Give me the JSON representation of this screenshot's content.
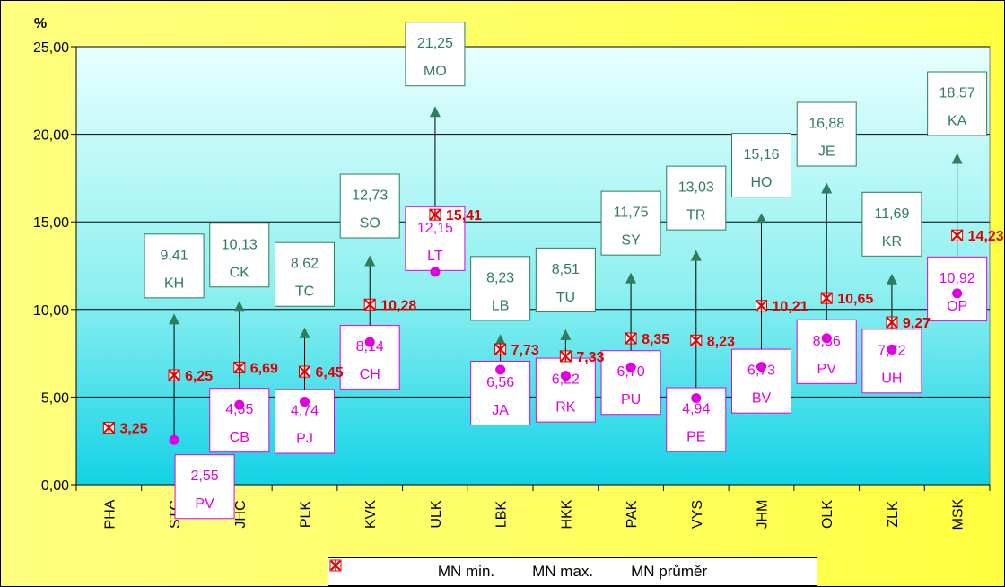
{
  "chart_data": {
    "type": "scatter",
    "y_unit_label": "%",
    "ylim": [
      0,
      25
    ],
    "y_ticks": [
      "0,00",
      "5,00",
      "10,00",
      "15,00",
      "20,00",
      "25,00"
    ],
    "categories": [
      "PHA",
      "STC",
      "JHC",
      "PLK",
      "KVK",
      "ULK",
      "LBK",
      "HKK",
      "PAK",
      "VYS",
      "JHM",
      "OLK",
      "ZLK",
      "MSK"
    ],
    "series": [
      {
        "name": "MN min.",
        "color": "#e000e0",
        "marker": "circle",
        "values": [
          null,
          2.55,
          4.55,
          4.74,
          8.14,
          12.15,
          6.56,
          6.22,
          6.7,
          4.94,
          6.73,
          8.36,
          7.72,
          10.92
        ],
        "value_labels": [
          "",
          "2,55",
          "4,55",
          "4,74",
          "8,14",
          "12,15",
          "6,56",
          "6,22",
          "6,70",
          "4,94",
          "6,73",
          "8,36",
          "7,72",
          "10,92"
        ],
        "district_labels": [
          "",
          "PV",
          "CB",
          "PJ",
          "CH",
          "LT",
          "JA",
          "RK",
          "PU",
          "PE",
          "BV",
          "PV",
          "UH",
          "OP"
        ]
      },
      {
        "name": "MN max.",
        "color": "#2e7d5b",
        "marker": "triangle",
        "values": [
          null,
          9.41,
          10.13,
          8.62,
          12.73,
          21.25,
          8.23,
          8.51,
          11.75,
          13.03,
          15.16,
          16.88,
          11.69,
          18.57
        ],
        "value_labels": [
          "",
          "9,41",
          "10,13",
          "8,62",
          "12,73",
          "21,25",
          "8,23",
          "8,51",
          "11,75",
          "13,03",
          "15,16",
          "16,88",
          "11,69",
          "18,57"
        ],
        "district_labels": [
          "",
          "KH",
          "CK",
          "TC",
          "SO",
          "MO",
          "LB",
          "TU",
          "SY",
          "TR",
          "HO",
          "JE",
          "KR",
          "KA"
        ]
      },
      {
        "name": "MN průměr",
        "color": "#e00000",
        "marker": "x-square",
        "values": [
          3.25,
          6.25,
          6.69,
          6.45,
          10.28,
          15.41,
          7.73,
          7.33,
          8.35,
          8.23,
          10.21,
          10.65,
          9.27,
          14.23
        ],
        "value_labels": [
          "3,25",
          "6,25",
          "6,69",
          "6,45",
          "10,28",
          "15,41",
          "7,73",
          "7,33",
          "8,35",
          "8,23",
          "10,21",
          "10,65",
          "9,27",
          "14,23"
        ]
      }
    ],
    "grid": true,
    "legend": {
      "position": "bottom"
    }
  }
}
